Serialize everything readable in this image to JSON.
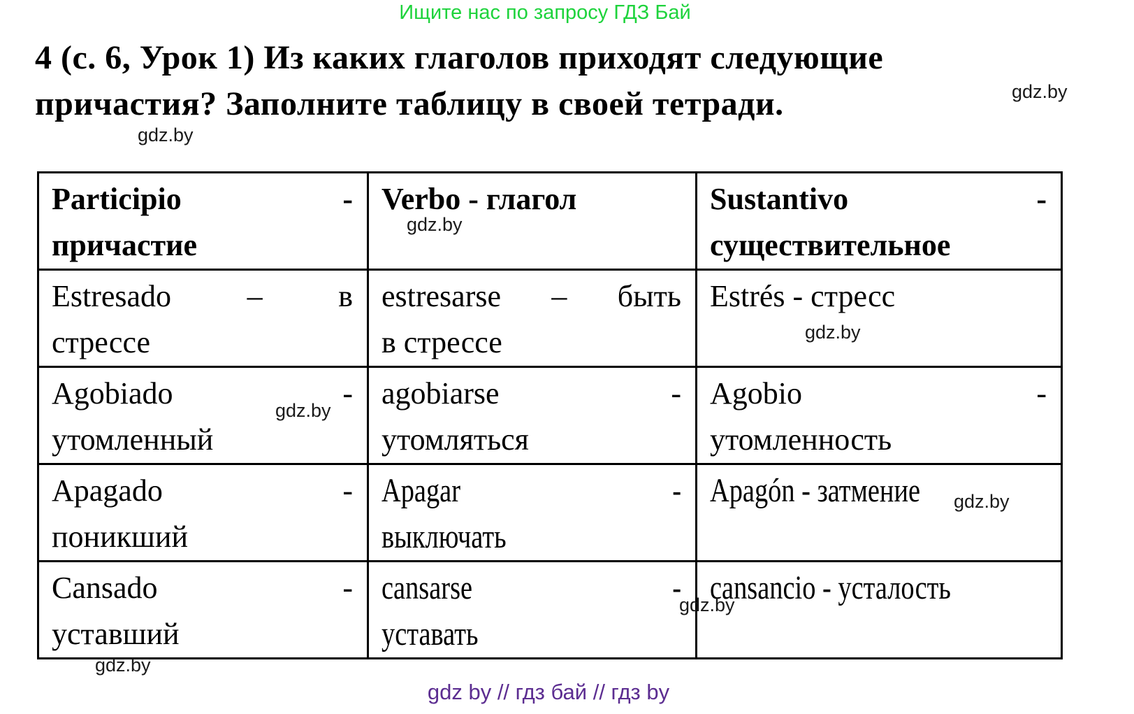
{
  "page": {
    "top_banner": "Ищите нас по запросу ГДЗ Бай",
    "title_line1": "4 (с. 6, Урок 1) Из каких глаголов приходят следующие",
    "title_line2": "причастия? Заполните таблицу в своей тетради.",
    "watermark": "gdz.by",
    "footer": "gdz by  //  гдз бай  //  гдз by",
    "colors": {
      "banner_green": "#1ed33c",
      "footer_purple": "#5c2d91",
      "text": "#000000",
      "background": "#ffffff"
    }
  },
  "table": {
    "header": [
      {
        "line1": [
          "Participio",
          "-"
        ],
        "line2": "причастие"
      },
      {
        "line1": [
          "Verbo - глагол"
        ],
        "line2": null
      },
      {
        "line1": [
          "Sustantivo",
          "-"
        ],
        "line2": "существительное"
      }
    ],
    "rows": [
      [
        {
          "line1": [
            "Estresado",
            "–",
            "в"
          ],
          "line2": "стрессе"
        },
        {
          "line1": [
            "estresarse",
            "–",
            "быть"
          ],
          "line2": "в стрессе"
        },
        {
          "line1": [
            "Estrés - стресс"
          ],
          "line2": null
        }
      ],
      [
        {
          "line1": [
            "Agobiado",
            "-"
          ],
          "line2": "утомленный"
        },
        {
          "line1": [
            "agobiarse",
            "-"
          ],
          "line2": "утомляться"
        },
        {
          "line1": [
            "Agobio",
            "-"
          ],
          "line2": "утомленность"
        }
      ],
      [
        {
          "line1": [
            "Apagado",
            "-"
          ],
          "line2": "поникший"
        },
        {
          "line1": [
            "Apagar",
            "-"
          ],
          "line2": "выключать"
        },
        {
          "line1": [
            "Apagón - затмение"
          ],
          "line2": null
        }
      ],
      [
        {
          "line1": [
            "Cansado",
            "-"
          ],
          "line2": "уставший"
        },
        {
          "line1": [
            "cansarse",
            "-"
          ],
          "line2": "уставать"
        },
        {
          "line1": [
            "cansancio - усталость"
          ],
          "line2": null
        }
      ]
    ]
  }
}
